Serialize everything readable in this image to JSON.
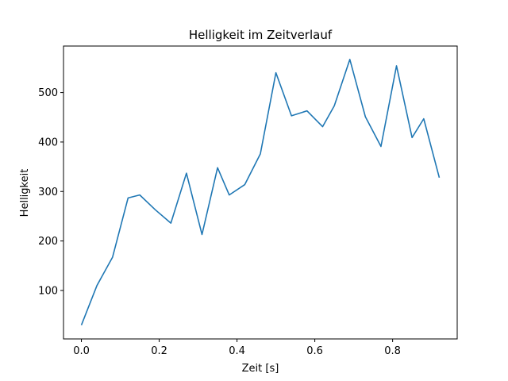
{
  "chart_data": {
    "type": "line",
    "title": "Helligkeit im Zeitverlauf",
    "xlabel": "Zeit [s]",
    "ylabel": "Helligkeit",
    "xlim": [
      -0.046,
      0.966
    ],
    "ylim": [
      2,
      594
    ],
    "x_ticks": [
      0.0,
      0.2,
      0.4,
      0.6,
      0.8
    ],
    "x_tick_labels": [
      "0.0",
      "0.2",
      "0.4",
      "0.6",
      "0.8"
    ],
    "y_ticks": [
      100,
      200,
      300,
      400,
      500
    ],
    "y_tick_labels": [
      "100",
      "200",
      "300",
      "400",
      "500"
    ],
    "grid": false,
    "series": [
      {
        "color": "#1f77b4",
        "x": [
          0.0,
          0.04,
          0.08,
          0.12,
          0.15,
          0.19,
          0.23,
          0.27,
          0.31,
          0.35,
          0.38,
          0.42,
          0.46,
          0.5,
          0.54,
          0.58,
          0.62,
          0.65,
          0.69,
          0.73,
          0.77,
          0.81,
          0.85,
          0.88,
          0.92
        ],
        "y": [
          30,
          110,
          167,
          287,
          293,
          263,
          236,
          337,
          213,
          348,
          293,
          314,
          376,
          540,
          453,
          463,
          431,
          473,
          567,
          451,
          391,
          554,
          409,
          447,
          328
        ]
      }
    ]
  }
}
